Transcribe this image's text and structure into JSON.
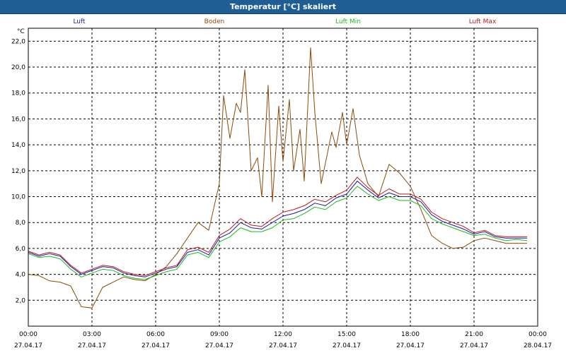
{
  "window": {
    "title": "Temperatur [°C] skaliert"
  },
  "chart_data": {
    "type": "line",
    "title": "Temperatur [°C] skaliert",
    "ylabel": "°C",
    "xlabel": "",
    "ylim": [
      0,
      23
    ],
    "xlim": [
      0,
      24
    ],
    "grid": true,
    "legend_position": "top",
    "y_ticks": [
      2.0,
      4.0,
      6.0,
      8.0,
      10.0,
      12.0,
      14.0,
      16.0,
      18.0,
      20.0,
      22.0
    ],
    "y_tick_labels": [
      "2,0",
      "4,0",
      "6,0",
      "8,0",
      "10,0",
      "12,0",
      "14,0",
      "16,0",
      "18,0",
      "20,0",
      "22,0"
    ],
    "x_ticks": [
      0,
      3,
      6,
      9,
      12,
      15,
      18,
      21,
      24
    ],
    "x_tick_labels": [
      [
        "00:00",
        "27.04.17"
      ],
      [
        "03:00",
        "27.04.17"
      ],
      [
        "06:00",
        "27.04.17"
      ],
      [
        "09:00",
        "27.04.17"
      ],
      [
        "12:00",
        "27.04.17"
      ],
      [
        "15:00",
        "27.04.17"
      ],
      [
        "18:00",
        "27.04.17"
      ],
      [
        "21:00",
        "27.04.17"
      ],
      [
        "00:00",
        "28.04.17"
      ]
    ],
    "series": [
      {
        "name": "Boden",
        "color": "#8b4a0a",
        "points": [
          [
            0,
            4.0
          ],
          [
            0.5,
            3.9
          ],
          [
            1,
            3.5
          ],
          [
            1.5,
            3.4
          ],
          [
            2,
            3.1
          ],
          [
            2.5,
            1.5
          ],
          [
            3,
            1.4
          ],
          [
            3.5,
            3.0
          ],
          [
            4,
            3.4
          ],
          [
            4.5,
            3.8
          ],
          [
            5,
            3.6
          ],
          [
            5.5,
            3.5
          ],
          [
            6,
            4.0
          ],
          [
            6.5,
            4.6
          ],
          [
            7,
            5.6
          ],
          [
            7.5,
            6.8
          ],
          [
            8,
            8.0
          ],
          [
            8.5,
            7.4
          ],
          [
            9,
            11.0
          ],
          [
            9.2,
            17.8
          ],
          [
            9.5,
            14.5
          ],
          [
            9.8,
            17.2
          ],
          [
            10,
            16.5
          ],
          [
            10.2,
            19.8
          ],
          [
            10.5,
            12.0
          ],
          [
            10.8,
            13.0
          ],
          [
            11,
            10.0
          ],
          [
            11.3,
            18.6
          ],
          [
            11.5,
            9.6
          ],
          [
            11.8,
            17.0
          ],
          [
            12,
            12.7
          ],
          [
            12.3,
            17.5
          ],
          [
            12.5,
            12.0
          ],
          [
            12.8,
            15.2
          ],
          [
            13,
            11.2
          ],
          [
            13.3,
            21.5
          ],
          [
            13.5,
            16.5
          ],
          [
            13.8,
            11.0
          ],
          [
            14,
            12.6
          ],
          [
            14.3,
            15.0
          ],
          [
            14.5,
            13.8
          ],
          [
            14.8,
            16.5
          ],
          [
            15,
            14.0
          ],
          [
            15.3,
            16.8
          ],
          [
            15.6,
            13.2
          ],
          [
            16,
            11.0
          ],
          [
            16.5,
            10.0
          ],
          [
            17,
            12.5
          ],
          [
            17.5,
            11.8
          ],
          [
            18,
            10.8
          ],
          [
            18.5,
            9.0
          ],
          [
            19,
            7.0
          ],
          [
            19.5,
            6.4
          ],
          [
            20,
            6.0
          ],
          [
            20.5,
            6.1
          ],
          [
            21,
            6.6
          ],
          [
            21.5,
            6.8
          ],
          [
            22,
            6.6
          ],
          [
            22.5,
            6.4
          ],
          [
            23,
            6.4
          ],
          [
            23.5,
            6.4
          ]
        ]
      },
      {
        "name": "Luft",
        "color": "#1a1a9c",
        "points": [
          [
            0,
            5.7
          ],
          [
            0.5,
            5.4
          ],
          [
            1,
            5.6
          ],
          [
            1.5,
            5.4
          ],
          [
            2,
            4.6
          ],
          [
            2.5,
            4.0
          ],
          [
            3,
            4.3
          ],
          [
            3.5,
            4.6
          ],
          [
            4,
            4.5
          ],
          [
            4.5,
            4.1
          ],
          [
            5,
            3.9
          ],
          [
            5.5,
            3.8
          ],
          [
            6,
            4.1
          ],
          [
            6.5,
            4.4
          ],
          [
            7,
            4.6
          ],
          [
            7.5,
            5.7
          ],
          [
            8,
            5.9
          ],
          [
            8.5,
            5.5
          ],
          [
            9,
            6.8
          ],
          [
            9.5,
            7.2
          ],
          [
            10,
            8.0
          ],
          [
            10.5,
            7.6
          ],
          [
            11,
            7.5
          ],
          [
            11.5,
            8.0
          ],
          [
            12,
            8.5
          ],
          [
            12.5,
            8.7
          ],
          [
            13,
            9.0
          ],
          [
            13.5,
            9.5
          ],
          [
            14,
            9.3
          ],
          [
            14.5,
            9.9
          ],
          [
            15,
            10.2
          ],
          [
            15.5,
            11.2
          ],
          [
            16,
            10.5
          ],
          [
            16.5,
            9.9
          ],
          [
            17,
            10.3
          ],
          [
            17.5,
            10.0
          ],
          [
            18,
            10.0
          ],
          [
            18.5,
            9.6
          ],
          [
            19,
            8.6
          ],
          [
            19.5,
            8.1
          ],
          [
            20,
            7.8
          ],
          [
            20.5,
            7.5
          ],
          [
            21,
            7.1
          ],
          [
            21.5,
            7.3
          ],
          [
            22,
            6.9
          ],
          [
            22.5,
            6.8
          ],
          [
            23,
            6.8
          ],
          [
            23.5,
            6.8
          ]
        ]
      },
      {
        "name": "Luft Min",
        "color": "#1cb81c",
        "points": [
          [
            0,
            5.6
          ],
          [
            0.5,
            5.3
          ],
          [
            1,
            5.4
          ],
          [
            1.5,
            5.2
          ],
          [
            2,
            4.4
          ],
          [
            2.5,
            3.8
          ],
          [
            3,
            4.1
          ],
          [
            3.5,
            4.4
          ],
          [
            4,
            4.3
          ],
          [
            4.5,
            3.9
          ],
          [
            5,
            3.7
          ],
          [
            5.5,
            3.6
          ],
          [
            6,
            3.9
          ],
          [
            6.5,
            4.2
          ],
          [
            7,
            4.4
          ],
          [
            7.5,
            5.5
          ],
          [
            8,
            5.7
          ],
          [
            8.5,
            5.3
          ],
          [
            9,
            6.5
          ],
          [
            9.5,
            6.9
          ],
          [
            10,
            7.6
          ],
          [
            10.5,
            7.3
          ],
          [
            11,
            7.3
          ],
          [
            11.5,
            7.6
          ],
          [
            12,
            8.2
          ],
          [
            12.5,
            8.3
          ],
          [
            13,
            8.7
          ],
          [
            13.5,
            9.2
          ],
          [
            14,
            9.0
          ],
          [
            14.5,
            9.6
          ],
          [
            15,
            9.9
          ],
          [
            15.5,
            10.8
          ],
          [
            16,
            10.2
          ],
          [
            16.5,
            9.7
          ],
          [
            17,
            10.0
          ],
          [
            17.5,
            9.7
          ],
          [
            18,
            9.7
          ],
          [
            18.5,
            9.3
          ],
          [
            19,
            8.3
          ],
          [
            19.5,
            7.9
          ],
          [
            20,
            7.6
          ],
          [
            20.5,
            7.3
          ],
          [
            21,
            7.0
          ],
          [
            21.5,
            7.1
          ],
          [
            22,
            6.8
          ],
          [
            22.5,
            6.6
          ],
          [
            23,
            6.7
          ],
          [
            23.5,
            6.6
          ]
        ]
      },
      {
        "name": "Luft Max",
        "color": "#c01818",
        "points": [
          [
            0,
            5.8
          ],
          [
            0.5,
            5.5
          ],
          [
            1,
            5.7
          ],
          [
            1.5,
            5.5
          ],
          [
            2,
            4.7
          ],
          [
            2.5,
            4.1
          ],
          [
            3,
            4.4
          ],
          [
            3.5,
            4.7
          ],
          [
            4,
            4.6
          ],
          [
            4.5,
            4.2
          ],
          [
            5,
            4.0
          ],
          [
            5.5,
            3.9
          ],
          [
            6,
            4.2
          ],
          [
            6.5,
            4.5
          ],
          [
            7,
            4.7
          ],
          [
            7.5,
            5.9
          ],
          [
            8,
            6.1
          ],
          [
            8.5,
            5.7
          ],
          [
            9,
            7.0
          ],
          [
            9.5,
            7.5
          ],
          [
            10,
            8.3
          ],
          [
            10.5,
            7.8
          ],
          [
            11,
            7.7
          ],
          [
            11.5,
            8.3
          ],
          [
            12,
            8.8
          ],
          [
            12.5,
            9.0
          ],
          [
            13,
            9.3
          ],
          [
            13.5,
            9.8
          ],
          [
            14,
            9.6
          ],
          [
            14.5,
            10.1
          ],
          [
            15,
            10.5
          ],
          [
            15.5,
            11.5
          ],
          [
            16,
            10.7
          ],
          [
            16.5,
            10.1
          ],
          [
            17,
            10.6
          ],
          [
            17.5,
            10.2
          ],
          [
            18,
            10.2
          ],
          [
            18.5,
            9.8
          ],
          [
            19,
            8.8
          ],
          [
            19.5,
            8.3
          ],
          [
            20,
            8.0
          ],
          [
            20.5,
            7.7
          ],
          [
            21,
            7.2
          ],
          [
            21.5,
            7.4
          ],
          [
            22,
            7.0
          ],
          [
            22.5,
            6.9
          ],
          [
            23,
            6.9
          ],
          [
            23.5,
            6.9
          ]
        ]
      }
    ]
  }
}
